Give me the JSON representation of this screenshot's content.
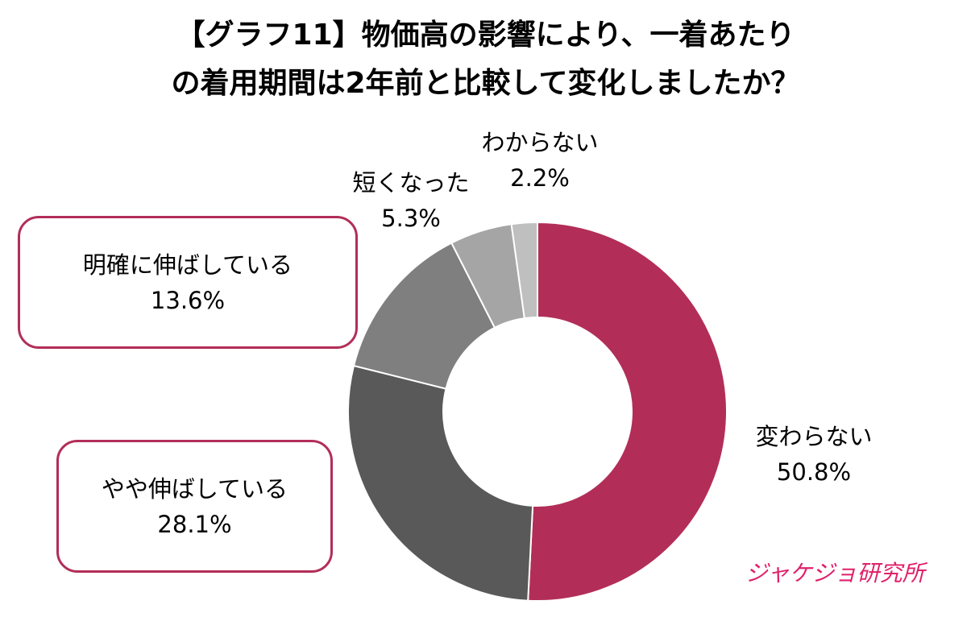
{
  "chart_data": {
    "type": "pie",
    "title_lines": [
      "【グラフ11】物価高の影響により、一着あたり",
      "の着用期間は2年前と比較して変化しましたか？"
    ],
    "slices": [
      {
        "label": "変わらない",
        "value": 50.8,
        "value_text": "50.8%",
        "color": "#b22e58"
      },
      {
        "label": "やや伸ばしている",
        "value": 28.1,
        "value_text": "28.1%",
        "color": "#595959"
      },
      {
        "label": "明確に伸ばしている",
        "value": 13.6,
        "value_text": "13.6%",
        "color": "#7f7f7f"
      },
      {
        "label": "短くなった",
        "value": 5.3,
        "value_text": "5.3%",
        "color": "#a5a5a5"
      },
      {
        "label": "わからない",
        "value": 2.2,
        "value_text": "2.2%",
        "color": "#bfbfbf"
      }
    ],
    "donut": true
  },
  "logo": {
    "text": "ジャケジョ研究所"
  }
}
